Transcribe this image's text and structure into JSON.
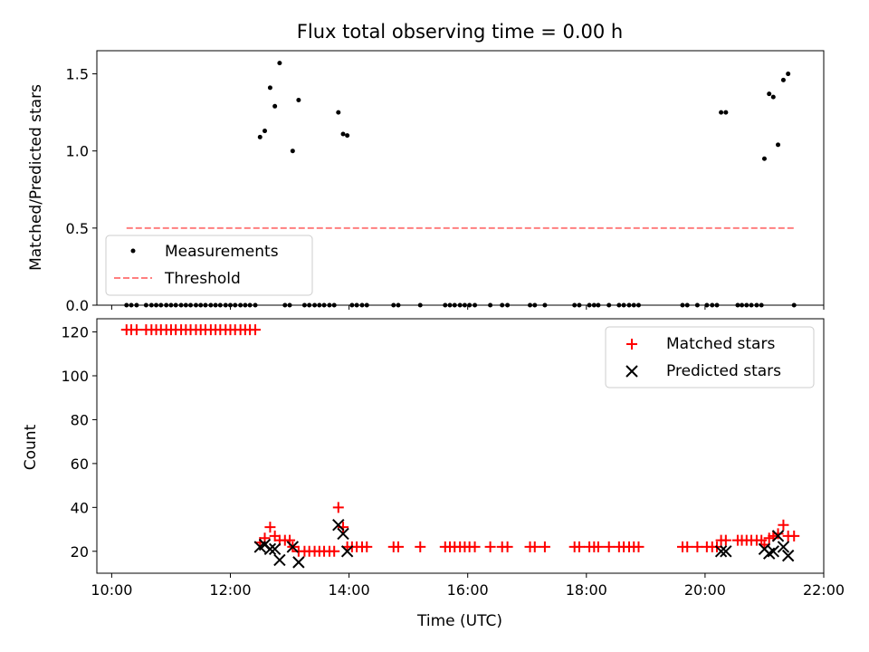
{
  "chart_data": [
    {
      "type": "scatter",
      "title": "Flux total observing time = 0.00 h",
      "xlabel": "",
      "ylabel": "Matched/Predicted stars",
      "xlim": [
        9.75,
        22.0
      ],
      "ylim": [
        0.0,
        1.65
      ],
      "yticks": [
        "0.0",
        "0.5",
        "1.0",
        "1.5"
      ],
      "xtick_values": [
        10,
        12,
        14,
        16,
        18,
        20,
        22
      ],
      "legend_position": "lower-left",
      "series": [
        {
          "name": "Measurements",
          "marker": "dot",
          "color": "#000000",
          "x": [
            10.25,
            10.33,
            10.42,
            10.58,
            10.67,
            10.75,
            10.83,
            10.92,
            11.0,
            11.08,
            11.17,
            11.25,
            11.33,
            11.42,
            11.5,
            11.58,
            11.67,
            11.75,
            11.83,
            11.92,
            12.0,
            12.08,
            12.17,
            12.25,
            12.33,
            12.42,
            12.5,
            12.58,
            12.67,
            12.75,
            12.83,
            13.05,
            13.15,
            13.82,
            13.9,
            13.97,
            20.27,
            20.35,
            21.0,
            21.08,
            21.15,
            21.23,
            21.32,
            21.4,
            12.92,
            13.0,
            13.25,
            13.33,
            13.42,
            13.5,
            13.58,
            13.67,
            13.75,
            14.05,
            14.13,
            14.22,
            14.3,
            14.75,
            14.83,
            15.2,
            15.62,
            15.7,
            15.78,
            15.87,
            15.95,
            16.03,
            16.12,
            16.38,
            16.58,
            16.67,
            17.05,
            17.13,
            17.3,
            17.8,
            17.88,
            18.05,
            18.13,
            18.2,
            18.38,
            18.55,
            18.63,
            18.72,
            18.8,
            18.88,
            19.62,
            19.7,
            19.87,
            20.03,
            20.12,
            20.2,
            20.55,
            20.62,
            20.7,
            20.78,
            20.87,
            20.95,
            21.5
          ],
          "y": [
            0,
            0,
            0,
            0,
            0,
            0,
            0,
            0,
            0,
            0,
            0,
            0,
            0,
            0,
            0,
            0,
            0,
            0,
            0,
            0,
            0,
            0,
            0,
            0,
            0,
            0,
            1.09,
            1.13,
            1.41,
            1.29,
            1.57,
            1.0,
            1.33,
            1.25,
            1.11,
            1.1,
            1.25,
            1.25,
            0.95,
            1.37,
            1.35,
            1.04,
            1.46,
            1.5,
            0,
            0,
            0,
            0,
            0,
            0,
            0,
            0,
            0,
            0,
            0,
            0,
            0,
            0,
            0,
            0,
            0,
            0,
            0,
            0,
            0,
            0,
            0,
            0,
            0,
            0,
            0,
            0,
            0,
            0,
            0,
            0,
            0,
            0,
            0,
            0,
            0,
            0,
            0,
            0,
            0,
            0,
            0,
            0,
            0,
            0,
            0,
            0,
            0,
            0,
            0,
            0,
            0
          ]
        },
        {
          "name": "Threshold",
          "marker": "dashed-line",
          "color": "#ff7f7f",
          "x": [
            10.25,
            21.5
          ],
          "y": [
            0.5,
            0.5
          ]
        }
      ]
    },
    {
      "type": "scatter",
      "title": "",
      "xlabel": "Time (UTC)",
      "ylabel": "Count",
      "xlim": [
        9.75,
        22.0
      ],
      "ylim": [
        10,
        126
      ],
      "yticks": [
        "20",
        "40",
        "60",
        "80",
        "100",
        "120"
      ],
      "xticks": [
        "10:00",
        "12:00",
        "14:00",
        "16:00",
        "18:00",
        "20:00",
        "22:00"
      ],
      "xtick_values": [
        10,
        12,
        14,
        16,
        18,
        20,
        22
      ],
      "legend_position": "upper-right",
      "series": [
        {
          "name": "Matched stars",
          "marker": "plus",
          "color": "#ff0000",
          "x": [
            10.25,
            10.33,
            10.42,
            10.58,
            10.67,
            10.75,
            10.83,
            10.92,
            11.0,
            11.08,
            11.17,
            11.25,
            11.33,
            11.42,
            11.5,
            11.58,
            11.67,
            11.75,
            11.83,
            11.92,
            12.0,
            12.08,
            12.17,
            12.25,
            12.33,
            12.42,
            12.5,
            12.58,
            12.67,
            12.75,
            12.83,
            12.92,
            13.0,
            13.05,
            13.15,
            13.25,
            13.33,
            13.42,
            13.5,
            13.58,
            13.67,
            13.75,
            13.82,
            13.9,
            13.97,
            14.05,
            14.13,
            14.22,
            14.3,
            14.75,
            14.83,
            15.2,
            15.62,
            15.7,
            15.78,
            15.87,
            15.95,
            16.03,
            16.12,
            16.38,
            16.58,
            16.67,
            17.05,
            17.13,
            17.3,
            17.8,
            17.88,
            18.05,
            18.13,
            18.2,
            18.38,
            18.55,
            18.63,
            18.72,
            18.8,
            18.88,
            19.62,
            19.7,
            19.87,
            20.03,
            20.12,
            20.2,
            20.27,
            20.35,
            20.55,
            20.62,
            20.7,
            20.78,
            20.87,
            20.95,
            21.0,
            21.08,
            21.15,
            21.23,
            21.32,
            21.4,
            21.5
          ],
          "y": [
            121,
            121,
            121,
            121,
            121,
            121,
            121,
            121,
            121,
            121,
            121,
            121,
            121,
            121,
            121,
            121,
            121,
            121,
            121,
            121,
            121,
            121,
            121,
            121,
            121,
            121,
            24,
            26,
            31,
            27,
            25,
            25,
            25,
            22,
            20,
            20,
            20,
            20,
            20,
            20,
            20,
            20,
            40,
            31,
            22,
            22,
            22,
            22,
            22,
            22,
            22,
            22,
            22,
            22,
            22,
            22,
            22,
            22,
            22,
            22,
            22,
            22,
            22,
            22,
            22,
            22,
            22,
            22,
            22,
            22,
            22,
            22,
            22,
            22,
            22,
            22,
            22,
            22,
            22,
            22,
            22,
            22,
            25,
            25,
            25,
            25,
            25,
            25,
            25,
            25,
            23,
            26,
            27,
            28,
            32,
            27,
            27
          ]
        },
        {
          "name": "Predicted stars",
          "marker": "x",
          "color": "#000000",
          "x": [
            12.5,
            12.58,
            12.67,
            12.75,
            12.83,
            13.05,
            13.15,
            13.82,
            13.9,
            13.97,
            20.27,
            20.35,
            21.0,
            21.08,
            21.15,
            21.23,
            21.32,
            21.4
          ],
          "y": [
            22,
            23,
            21,
            21,
            16,
            22,
            15,
            32,
            28,
            20,
            20,
            20,
            21,
            19,
            20,
            27,
            22,
            18
          ]
        }
      ]
    }
  ]
}
